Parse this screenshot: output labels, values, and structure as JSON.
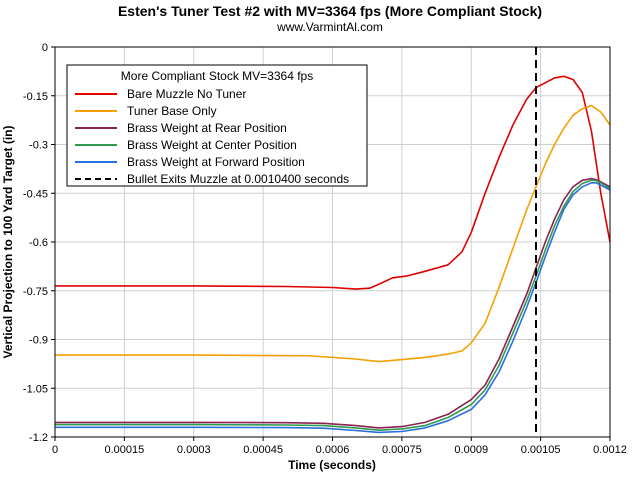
{
  "chart_data": {
    "type": "line",
    "title": "Esten's Tuner Test #2 with MV=3364 fps (More Compliant Stock)",
    "subtitle": "www.VarmintAl.com",
    "xlabel": "Time (seconds)",
    "ylabel": "Vertical Projection to 100 Yard Target (in)",
    "xlim": [
      0,
      0.0012
    ],
    "ylim": [
      -1.2,
      0
    ],
    "xticks": [
      0,
      0.00015,
      0.0003,
      0.00045,
      0.0006,
      0.00075,
      0.0009,
      0.00105,
      0.0012
    ],
    "xtick_labels": [
      "0",
      "0.00015",
      "0.0003",
      "0.00045",
      "0.0006",
      "0.00075",
      "0.0009",
      "0.00105",
      "0.0012"
    ],
    "yticks": [
      0,
      -0.15,
      -0.3,
      -0.45,
      -0.6,
      -0.75,
      -0.9,
      -1.05,
      -1.2
    ],
    "ytick_labels": [
      "0",
      "-0.15",
      "-0.3",
      "-0.45",
      "-0.6",
      "-0.75",
      "-0.9",
      "-1.05",
      "-1.2"
    ],
    "grid": true,
    "legend_title": "More Compliant Stock MV=3364 fps",
    "legend_position": "top-left",
    "series": [
      {
        "name": "Bare Muzzle No Tuner",
        "color": "#e00000",
        "x": [
          0,
          0.0003,
          0.0005,
          0.0006,
          0.00065,
          0.00068,
          0.0007,
          0.00073,
          0.00076,
          0.0008,
          0.00085,
          0.00088,
          0.0009,
          0.00093,
          0.00096,
          0.00099,
          0.00102,
          0.00104,
          0.00106,
          0.00108,
          0.0011,
          0.00112,
          0.00114,
          0.00116,
          0.00118,
          0.0012
        ],
        "y": [
          -0.735,
          -0.735,
          -0.737,
          -0.74,
          -0.745,
          -0.742,
          -0.73,
          -0.71,
          -0.705,
          -0.69,
          -0.67,
          -0.63,
          -0.57,
          -0.45,
          -0.34,
          -0.24,
          -0.16,
          -0.125,
          -0.11,
          -0.095,
          -0.09,
          -0.1,
          -0.14,
          -0.26,
          -0.45,
          -0.6
        ]
      },
      {
        "name": "Tuner Base Only",
        "color": "#f5a000",
        "x": [
          0,
          0.0003,
          0.00055,
          0.00065,
          0.0007,
          0.00075,
          0.0008,
          0.00085,
          0.00088,
          0.0009,
          0.00093,
          0.00096,
          0.00099,
          0.00102,
          0.00104,
          0.00106,
          0.00108,
          0.0011,
          0.00112,
          0.00114,
          0.00116,
          0.00118,
          0.0012
        ],
        "y": [
          -0.948,
          -0.948,
          -0.95,
          -0.96,
          -0.968,
          -0.962,
          -0.955,
          -0.945,
          -0.935,
          -0.91,
          -0.85,
          -0.74,
          -0.62,
          -0.5,
          -0.43,
          -0.36,
          -0.3,
          -0.25,
          -0.21,
          -0.19,
          -0.18,
          -0.2,
          -0.24
        ]
      },
      {
        "name": "Brass Weight at Rear Position",
        "color": "#8b2252",
        "x": [
          0,
          0.0003,
          0.0005,
          0.00058,
          0.00065,
          0.0007,
          0.00075,
          0.0008,
          0.00085,
          0.0009,
          0.00093,
          0.00096,
          0.00099,
          0.00102,
          0.00104,
          0.00106,
          0.00108,
          0.0011,
          0.00112,
          0.00114,
          0.00116,
          0.00117,
          0.00118,
          0.0012
        ],
        "y": [
          -1.155,
          -1.155,
          -1.156,
          -1.158,
          -1.165,
          -1.172,
          -1.168,
          -1.155,
          -1.13,
          -1.085,
          -1.04,
          -0.96,
          -0.86,
          -0.76,
          -0.68,
          -0.6,
          -0.53,
          -0.47,
          -0.43,
          -0.41,
          -0.405,
          -0.408,
          -0.415,
          -0.43
        ]
      },
      {
        "name": "Brass Weight at Center Position",
        "color": "#2e9b50",
        "x": [
          0,
          0.0003,
          0.0005,
          0.00058,
          0.00065,
          0.0007,
          0.00075,
          0.0008,
          0.00085,
          0.0009,
          0.00093,
          0.00096,
          0.00099,
          0.00102,
          0.00104,
          0.00106,
          0.00108,
          0.0011,
          0.00112,
          0.00114,
          0.00116,
          0.00117,
          0.00118,
          0.0012
        ],
        "y": [
          -1.162,
          -1.162,
          -1.163,
          -1.165,
          -1.172,
          -1.179,
          -1.175,
          -1.165,
          -1.14,
          -1.1,
          -1.055,
          -0.98,
          -0.88,
          -0.78,
          -0.705,
          -0.625,
          -0.55,
          -0.49,
          -0.445,
          -0.42,
          -0.41,
          -0.411,
          -0.418,
          -0.435
        ]
      },
      {
        "name": "Brass Weight at Forward Position",
        "color": "#2a6ee0",
        "x": [
          0,
          0.0003,
          0.0005,
          0.00058,
          0.00065,
          0.0007,
          0.00075,
          0.0008,
          0.00085,
          0.0009,
          0.00093,
          0.00096,
          0.00099,
          0.00102,
          0.00104,
          0.00106,
          0.00108,
          0.0011,
          0.00112,
          0.00114,
          0.00116,
          0.00117,
          0.00118,
          0.0012
        ],
        "y": [
          -1.17,
          -1.17,
          -1.171,
          -1.173,
          -1.18,
          -1.186,
          -1.183,
          -1.172,
          -1.15,
          -1.115,
          -1.07,
          -1.0,
          -0.905,
          -0.8,
          -0.725,
          -0.645,
          -0.57,
          -0.5,
          -0.455,
          -0.43,
          -0.418,
          -0.418,
          -0.425,
          -0.44
        ]
      },
      {
        "name": "Bullet Exits Muzzle at 0.0010400 seconds",
        "color": "#000000",
        "dash": true,
        "x": [
          0.00104,
          0.00104
        ],
        "y": [
          0,
          -1.2
        ]
      }
    ]
  }
}
